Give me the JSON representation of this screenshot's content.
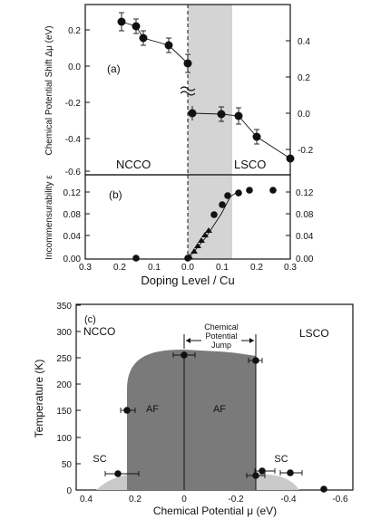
{
  "chart_data": [
    {
      "panel": "(a)",
      "type": "scatter",
      "ylabel": "Chemical Potential Shift Δμ (eV)",
      "y_left_ticks": [
        "0.2",
        "0.0",
        "-0.2",
        "-0.4",
        "-0.6"
      ],
      "y_right_ticks": [
        "0.4",
        "0.2",
        "0.0",
        "-0.2"
      ],
      "region_labels": {
        "left": "NCCO",
        "right": "LSCO"
      },
      "shaded_region_x": [
        0.0,
        0.12
      ],
      "ncco": {
        "x": [
          -0.185,
          -0.15,
          -0.125,
          -0.075,
          -0.01
        ],
        "y": [
          0.235,
          0.21,
          0.15,
          0.1,
          0.005
        ]
      },
      "lsco": {
        "x": [
          0.0,
          0.07,
          0.13,
          0.185,
          0.26,
          0.3
        ],
        "y": [
          -0.27,
          -0.278,
          -0.29,
          -0.405,
          -0.53,
          -0.53
        ]
      },
      "lsco_right_axis_equivalent": [
        0.0,
        -0.01,
        -0.025,
        -0.14,
        -0.26
      ],
      "ylim": [
        -0.62,
        0.32
      ]
    },
    {
      "panel": "(b)",
      "type": "scatter",
      "ylabel": "Incommensurability ε",
      "xlabel": "Doping Level / Cu",
      "x_ticks": [
        "0.3",
        "0.2",
        "0.1",
        "0.0",
        "0.1",
        "0.2",
        "0.3"
      ],
      "y_ticks": [
        "0.00",
        "0.04",
        "0.08",
        "0.12"
      ],
      "xlim": [
        -0.3,
        0.3
      ],
      "ylim": [
        0.0,
        0.145
      ],
      "circles": {
        "x": [
          -0.155,
          0.0,
          0.07,
          0.1,
          0.12,
          0.15,
          0.18,
          0.25
        ],
        "y": [
          0.0,
          0.0,
          0.082,
          0.1,
          0.118,
          0.125,
          0.13,
          0.13
        ]
      },
      "triangles": {
        "x": [
          0.005,
          0.015,
          0.025,
          0.035,
          0.045,
          0.055
        ],
        "y": [
          0.005,
          0.015,
          0.028,
          0.038,
          0.045,
          0.052
        ]
      }
    },
    {
      "panel": "(c)",
      "type": "scatter",
      "xlabel": "Chemical Potential μ (eV)",
      "ylabel": "Temperature (K)",
      "x_ticks": [
        "0.4",
        "0.2",
        "0",
        "-0.2",
        "-0.4",
        "-0.6"
      ],
      "y_ticks": [
        "0",
        "50",
        "100",
        "150",
        "200",
        "250",
        "300",
        "350"
      ],
      "xlim": [
        0.5,
        -0.65
      ],
      "ylim": [
        0,
        350
      ],
      "region_labels": {
        "ncco": "NCCO",
        "lsco": "LSCO",
        "af_left": "AF",
        "af_right": "AF",
        "sc_left": "SC",
        "sc_right": "SC"
      },
      "annotation": "Chemical Potential Jump",
      "points": {
        "x": [
          0.22,
          0.23,
          0.0,
          -0.265,
          -0.27,
          -0.3,
          -0.4,
          -0.53
        ],
        "y": [
          150,
          25,
          255,
          245,
          28,
          35,
          30,
          0
        ],
        "xerr": [
          0.02,
          0.06,
          0.02,
          0.02,
          0.02,
          0.03,
          0.03,
          0.0
        ]
      }
    }
  ]
}
